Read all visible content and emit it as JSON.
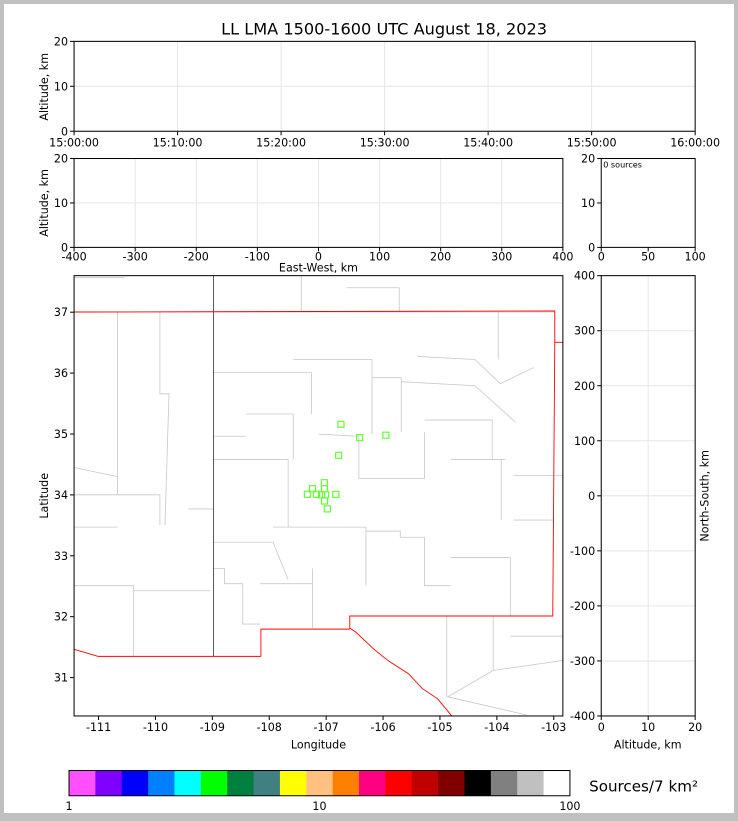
{
  "chart_data": [
    {
      "type": "scatter",
      "title": "LL LMA 1500-1600 UTC August 18, 2023",
      "xlabel": "",
      "ylabel": "Altitude, km",
      "xticks": [
        "15:00:00",
        "15:10:00",
        "15:20:00",
        "15:30:00",
        "15:40:00",
        "15:50:00",
        "16:00:00"
      ],
      "yticks": [
        "0",
        "10",
        "20"
      ],
      "ylim": [
        0,
        20
      ],
      "grid": true,
      "points": []
    },
    {
      "type": "scatter",
      "xlabel": "East-West, km",
      "ylabel": "Altitude, km",
      "xticks": [
        "-400",
        "-300",
        "-200",
        "-100",
        "0",
        "100",
        "200",
        "300",
        "400"
      ],
      "xlim": [
        -400,
        400
      ],
      "yticks": [
        "0",
        "10",
        "20"
      ],
      "ylim": [
        0,
        20
      ],
      "grid": true,
      "points": []
    },
    {
      "type": "histogram",
      "annotation": "0 sources",
      "xticks": [
        "0",
        "50",
        "100"
      ],
      "xlim": [
        0,
        100
      ],
      "yticks": [
        "0",
        "10",
        "20"
      ],
      "ylim": [
        0,
        20
      ]
    },
    {
      "type": "scatter",
      "xlabel": "Longitude",
      "ylabel": "Latitude",
      "xticks": [
        "-111",
        "-110",
        "-109",
        "-108",
        "-107",
        "-106",
        "-105",
        "-104",
        "-103"
      ],
      "xlim": [
        -111.43,
        -102.84
      ],
      "yticks": [
        "31",
        "32",
        "33",
        "34",
        "35",
        "36",
        "37"
      ],
      "ylim": [
        30.37,
        37.6
      ],
      "marker_color": "#66ff33",
      "points": [
        [
          -106.74,
          35.16
        ],
        [
          -106.41,
          34.94
        ],
        [
          -105.95,
          34.98
        ],
        [
          -106.78,
          34.65
        ],
        [
          -107.33,
          34.01
        ],
        [
          -107.24,
          34.1
        ],
        [
          -107.17,
          34.01
        ],
        [
          -107.08,
          34.0
        ],
        [
          -107.03,
          34.2
        ],
        [
          -107.03,
          34.1
        ],
        [
          -107.01,
          34.0
        ],
        [
          -107.03,
          33.9
        ],
        [
          -106.98,
          33.77
        ],
        [
          -106.83,
          34.01
        ]
      ]
    },
    {
      "type": "scatter",
      "xlabel": "Altitude, km",
      "ylabel": "North-South, km",
      "xticks": [
        "0",
        "10",
        "20"
      ],
      "xlim": [
        0,
        20
      ],
      "yticks": [
        "-400",
        "-300",
        "-200",
        "-100",
        "0",
        "100",
        "200",
        "300",
        "400"
      ],
      "ylim": [
        -400,
        400
      ],
      "points": []
    }
  ],
  "colorbar": {
    "label": "Sources/7 km²",
    "ticks": [
      "1",
      "10",
      "100"
    ],
    "colors": [
      "#ff50ff",
      "#8000ff",
      "#0000ff",
      "#0080ff",
      "#00ffff",
      "#00ff00",
      "#008040",
      "#408080",
      "#ffff00",
      "#ffc080",
      "#ff8000",
      "#ff0080",
      "#ff0000",
      "#c00000",
      "#800000",
      "#000000",
      "#808080",
      "#c0c0c0",
      "#ffffff"
    ]
  }
}
